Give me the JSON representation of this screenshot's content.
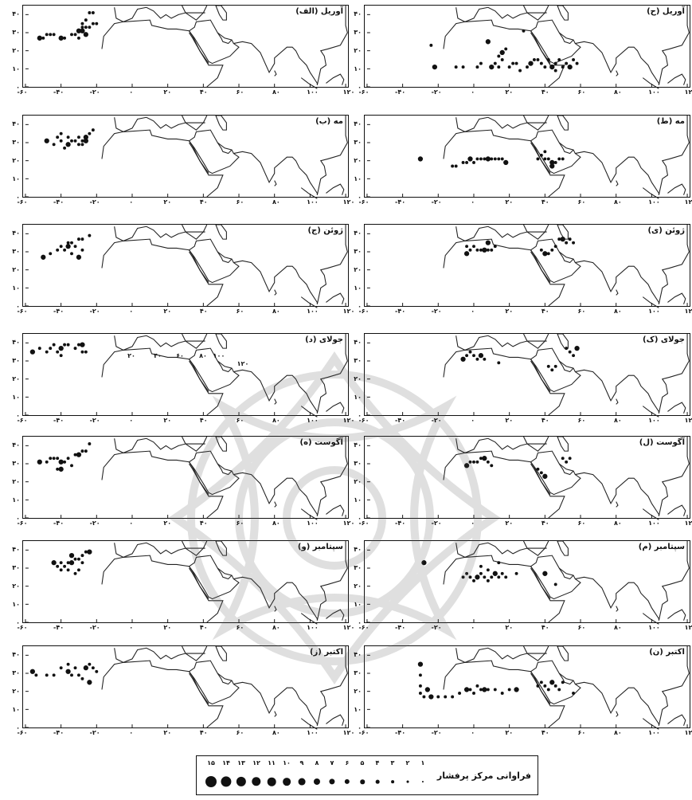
{
  "figure": {
    "x_tick_labels": [
      "-۶۰",
      "-۴۰",
      "-۲۰",
      "۰",
      "۲۰",
      "۴۰",
      "۶۰",
      "۸۰",
      "۱۰۰",
      "۱۲۰"
    ],
    "y_tick_labels": [
      "۴۰",
      "۳۰",
      "۲۰",
      "۱۰",
      "۰"
    ],
    "extra_labels": [
      "۲۰",
      "۴۰",
      "۶۰",
      "۸۰",
      "۱۰۰",
      "۱۲۰"
    ]
  },
  "panels": [
    {
      "title": "آوریل (الف)",
      "col": "left",
      "month": "April",
      "centers": [
        [
          -52,
          27
        ],
        [
          -50,
          27
        ],
        [
          -48,
          29
        ],
        [
          -46,
          29
        ],
        [
          -44,
          29
        ],
        [
          -40,
          27
        ],
        [
          -38,
          27
        ],
        [
          -34,
          29
        ],
        [
          -32,
          29
        ],
        [
          -30,
          27
        ],
        [
          -28,
          31
        ],
        [
          -26,
          33
        ],
        [
          -24,
          33
        ],
        [
          -22,
          35
        ],
        [
          -20,
          35
        ],
        [
          -30,
          31
        ],
        [
          -28,
          35
        ],
        [
          -26,
          37
        ],
        [
          -24,
          41
        ],
        [
          -22,
          41
        ],
        [
          -26,
          29
        ],
        [
          -28,
          33
        ]
      ]
    },
    {
      "title": "آوریل (ح)",
      "col": "right",
      "month": "April",
      "centers": [
        [
          -22,
          11
        ],
        [
          -10,
          11
        ],
        [
          -6,
          11
        ],
        [
          2,
          11
        ],
        [
          4,
          13
        ],
        [
          10,
          11
        ],
        [
          12,
          13
        ],
        [
          14,
          11
        ],
        [
          16,
          15
        ],
        [
          14,
          17
        ],
        [
          16,
          19
        ],
        [
          18,
          21
        ],
        [
          22,
          13
        ],
        [
          24,
          13
        ],
        [
          30,
          11
        ],
        [
          32,
          13
        ],
        [
          36,
          15
        ],
        [
          38,
          13
        ],
        [
          40,
          11
        ],
        [
          42,
          15
        ],
        [
          44,
          11
        ],
        [
          46,
          13
        ],
        [
          48,
          15
        ],
        [
          50,
          11
        ],
        [
          52,
          13
        ],
        [
          54,
          11
        ],
        [
          56,
          15
        ],
        [
          58,
          13
        ],
        [
          20,
          11
        ],
        [
          26,
          9
        ],
        [
          8,
          25
        ],
        [
          28,
          31
        ],
        [
          -24,
          23
        ],
        [
          34,
          15
        ],
        [
          46,
          9
        ]
      ]
    },
    {
      "title": "مه (ب)",
      "col": "left",
      "month": "May",
      "centers": [
        [
          -48,
          31
        ],
        [
          -44,
          29
        ],
        [
          -42,
          33
        ],
        [
          -40,
          31
        ],
        [
          -38,
          27
        ],
        [
          -36,
          29
        ],
        [
          -34,
          31
        ],
        [
          -32,
          31
        ],
        [
          -30,
          33
        ],
        [
          -28,
          31
        ],
        [
          -26,
          33
        ],
        [
          -24,
          35
        ],
        [
          -22,
          37
        ],
        [
          -40,
          35
        ],
        [
          -36,
          33
        ],
        [
          -26,
          31
        ],
        [
          -30,
          29
        ],
        [
          -28,
          29
        ]
      ]
    },
    {
      "title": "مه (ط)",
      "col": "right",
      "month": "May",
      "centers": [
        [
          -30,
          21
        ],
        [
          -12,
          17
        ],
        [
          -10,
          17
        ],
        [
          -6,
          19
        ],
        [
          -4,
          19
        ],
        [
          -2,
          21
        ],
        [
          0,
          19
        ],
        [
          2,
          21
        ],
        [
          4,
          21
        ],
        [
          6,
          21
        ],
        [
          8,
          21
        ],
        [
          10,
          21
        ],
        [
          12,
          21
        ],
        [
          14,
          21
        ],
        [
          16,
          21
        ],
        [
          18,
          19
        ],
        [
          36,
          21
        ],
        [
          38,
          23
        ],
        [
          40,
          21
        ],
        [
          42,
          21
        ],
        [
          44,
          19
        ],
        [
          46,
          19
        ],
        [
          48,
          21
        ],
        [
          50,
          21
        ],
        [
          40,
          25
        ],
        [
          44,
          17
        ]
      ]
    },
    {
      "title": "ژوئن (ج)",
      "col": "left",
      "month": "June",
      "centers": [
        [
          -50,
          27
        ],
        [
          -46,
          29
        ],
        [
          -42,
          31
        ],
        [
          -40,
          33
        ],
        [
          -38,
          31
        ],
        [
          -36,
          33
        ],
        [
          -34,
          35
        ],
        [
          -32,
          33
        ],
        [
          -30,
          37
        ],
        [
          -28,
          31
        ],
        [
          -30,
          27
        ],
        [
          -34,
          29
        ],
        [
          -36,
          35
        ],
        [
          -28,
          37
        ],
        [
          -24,
          39
        ]
      ]
    },
    {
      "title": "ژوئن (ی)",
      "col": "right",
      "month": "June",
      "centers": [
        [
          -4,
          29
        ],
        [
          -2,
          31
        ],
        [
          0,
          33
        ],
        [
          2,
          31
        ],
        [
          4,
          31
        ],
        [
          6,
          31
        ],
        [
          8,
          31
        ],
        [
          10,
          31
        ],
        [
          12,
          33
        ],
        [
          38,
          31
        ],
        [
          40,
          29
        ],
        [
          42,
          29
        ],
        [
          44,
          31
        ],
        [
          46,
          33
        ],
        [
          48,
          37
        ],
        [
          50,
          37
        ],
        [
          52,
          35
        ],
        [
          54,
          37
        ],
        [
          56,
          35
        ],
        [
          -4,
          33
        ],
        [
          8,
          35
        ]
      ]
    },
    {
      "title": "جولای (د)",
      "col": "left",
      "month": "July",
      "centers": [
        [
          -56,
          35
        ],
        [
          -52,
          37
        ],
        [
          -48,
          35
        ],
        [
          -46,
          37
        ],
        [
          -42,
          35
        ],
        [
          -40,
          37
        ],
        [
          -38,
          39
        ],
        [
          -36,
          39
        ],
        [
          -32,
          37
        ],
        [
          -30,
          39
        ],
        [
          -28,
          39
        ],
        [
          -26,
          35
        ],
        [
          -28,
          35
        ],
        [
          -44,
          39
        ],
        [
          -40,
          33
        ]
      ]
    },
    {
      "title": "جولای (ک)",
      "col": "right",
      "month": "July",
      "centers": [
        [
          -6,
          31
        ],
        [
          -4,
          33
        ],
        [
          -2,
          35
        ],
        [
          0,
          33
        ],
        [
          2,
          31
        ],
        [
          4,
          33
        ],
        [
          6,
          31
        ],
        [
          52,
          37
        ],
        [
          54,
          35
        ],
        [
          56,
          33
        ],
        [
          58,
          37
        ],
        [
          46,
          27
        ],
        [
          42,
          27
        ],
        [
          44,
          25
        ],
        [
          14,
          29
        ]
      ]
    },
    {
      "title": "آگوست (ه)",
      "col": "left",
      "month": "August",
      "centers": [
        [
          -52,
          31
        ],
        [
          -48,
          31
        ],
        [
          -46,
          33
        ],
        [
          -44,
          33
        ],
        [
          -42,
          33
        ],
        [
          -40,
          31
        ],
        [
          -38,
          31
        ],
        [
          -36,
          33
        ],
        [
          -34,
          29
        ],
        [
          -32,
          35
        ],
        [
          -30,
          35
        ],
        [
          -28,
          37
        ],
        [
          -26,
          37
        ],
        [
          -24,
          41
        ],
        [
          -42,
          27
        ],
        [
          -40,
          27
        ]
      ]
    },
    {
      "title": "آگوست (ل)",
      "col": "right",
      "month": "August",
      "centers": [
        [
          -4,
          29
        ],
        [
          -2,
          31
        ],
        [
          0,
          31
        ],
        [
          2,
          31
        ],
        [
          4,
          33
        ],
        [
          6,
          33
        ],
        [
          8,
          31
        ],
        [
          10,
          29
        ],
        [
          36,
          27
        ],
        [
          38,
          25
        ],
        [
          40,
          23
        ],
        [
          50,
          33
        ],
        [
          52,
          31
        ],
        [
          54,
          33
        ]
      ]
    },
    {
      "title": "سپتامبر (و)",
      "col": "left",
      "month": "September",
      "centers": [
        [
          -44,
          33
        ],
        [
          -42,
          31
        ],
        [
          -40,
          33
        ],
        [
          -38,
          31
        ],
        [
          -36,
          33
        ],
        [
          -34,
          33
        ],
        [
          -32,
          35
        ],
        [
          -30,
          35
        ],
        [
          -28,
          37
        ],
        [
          -26,
          39
        ],
        [
          -24,
          39
        ],
        [
          -40,
          29
        ],
        [
          -36,
          29
        ],
        [
          -32,
          27
        ],
        [
          -30,
          29
        ],
        [
          -34,
          37
        ],
        [
          -28,
          33
        ]
      ]
    },
    {
      "title": "سپتامبر (م)",
      "col": "right",
      "month": "September",
      "centers": [
        [
          -28,
          33
        ],
        [
          -6,
          25
        ],
        [
          -4,
          27
        ],
        [
          -2,
          25
        ],
        [
          0,
          23
        ],
        [
          2,
          25
        ],
        [
          4,
          27
        ],
        [
          6,
          25
        ],
        [
          8,
          23
        ],
        [
          10,
          25
        ],
        [
          12,
          27
        ],
        [
          14,
          25
        ],
        [
          16,
          27
        ],
        [
          18,
          25
        ],
        [
          24,
          27
        ],
        [
          40,
          27
        ],
        [
          46,
          21
        ],
        [
          14,
          33
        ],
        [
          4,
          31
        ],
        [
          8,
          29
        ]
      ]
    },
    {
      "title": "اکتبر (ز)",
      "col": "left",
      "month": "October",
      "centers": [
        [
          -56,
          31
        ],
        [
          -54,
          29
        ],
        [
          -48,
          29
        ],
        [
          -44,
          29
        ],
        [
          -40,
          33
        ],
        [
          -36,
          31
        ],
        [
          -34,
          29
        ],
        [
          -32,
          33
        ],
        [
          -30,
          29
        ],
        [
          -28,
          27
        ],
        [
          -26,
          33
        ],
        [
          -24,
          35
        ],
        [
          -22,
          33
        ],
        [
          -20,
          31
        ],
        [
          -36,
          35
        ],
        [
          -24,
          25
        ]
      ]
    },
    {
      "title": "اکتبر (ن)",
      "col": "right",
      "month": "October",
      "centers": [
        [
          -30,
          35
        ],
        [
          -30,
          29
        ],
        [
          -30,
          23
        ],
        [
          -30,
          19
        ],
        [
          -28,
          17
        ],
        [
          -24,
          17
        ],
        [
          -20,
          17
        ],
        [
          -16,
          17
        ],
        [
          -12,
          17
        ],
        [
          -8,
          19
        ],
        [
          -4,
          21
        ],
        [
          -2,
          21
        ],
        [
          0,
          19
        ],
        [
          2,
          23
        ],
        [
          4,
          21
        ],
        [
          6,
          21
        ],
        [
          8,
          21
        ],
        [
          12,
          21
        ],
        [
          16,
          19
        ],
        [
          20,
          21
        ],
        [
          24,
          21
        ],
        [
          36,
          23
        ],
        [
          38,
          25
        ],
        [
          40,
          23
        ],
        [
          42,
          21
        ],
        [
          44,
          25
        ],
        [
          46,
          23
        ],
        [
          48,
          21
        ],
        [
          50,
          25
        ],
        [
          56,
          19
        ],
        [
          -26,
          21
        ]
      ]
    }
  ],
  "legend": {
    "title": "فراوانی مرکز پرفشار",
    "items": [
      "۱",
      "۲",
      "۳",
      "۴",
      "۵",
      "۶",
      "۷",
      "۸",
      "۹",
      "۱۰",
      "۱۱",
      "۱۲",
      "۱۳",
      "۱۴",
      "۱۵"
    ]
  }
}
